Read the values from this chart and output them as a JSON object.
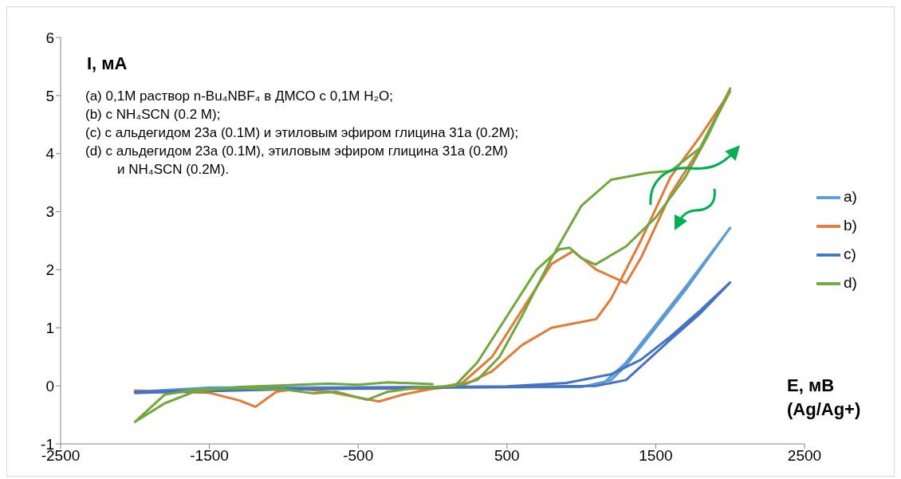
{
  "chart_data": {
    "type": "line",
    "xlabel": "E, мВ (Ag/Ag+)",
    "ylabel": "I, мА",
    "annotations": [
      "(a) 0,1M раствор n-Bu₄NBF₄ в ДМСО с 0,1M H₂O;",
      "(b) с NH₄SCN (0.2 M);",
      "(c) с альдегидом 23a (0.1M) и этиловым эфиром глицина 31a (0.2M);",
      "(d) с альдегидом 23a (0.1M), этиловым эфиром глицина 31a (0.2M)\nи NH₄SCN (0.2M)."
    ],
    "xlim": [
      -2500,
      2500
    ],
    "xticks": [
      -2500,
      -1500,
      -500,
      500,
      1500,
      2500
    ],
    "ylim": [
      -1,
      6
    ],
    "yticks": [
      -1,
      0,
      1,
      2,
      3,
      4,
      5,
      6
    ],
    "grid": false,
    "legend": "right",
    "marker": "none",
    "line_style": "solid",
    "series": [
      {
        "name": "a)",
        "color": "#5b9bd5",
        "x": [
          -2000,
          -1500,
          0,
          500,
          1000,
          1150,
          1300,
          1500,
          1700,
          2000,
          1700,
          1500,
          1300,
          1200,
          1000,
          0,
          -1000,
          -2000
        ],
        "values": [
          -0.1,
          -0.03,
          -0.02,
          -0.02,
          -0.01,
          0.05,
          0.4,
          1.05,
          1.7,
          2.72,
          1.65,
          1.0,
          0.35,
          0.1,
          -0.02,
          -0.03,
          -0.05,
          -0.12
        ]
      },
      {
        "name": "b)",
        "color": "#e07b39",
        "x": [
          -2000,
          -1500,
          -1300,
          -1190,
          -1050,
          -900,
          -700,
          -500,
          -360,
          -200,
          0,
          200,
          400,
          600,
          800,
          1000,
          1100,
          1200,
          1400,
          1600,
          1800,
          2000,
          1800,
          1600,
          1400,
          1300,
          1100,
          945,
          800,
          600,
          400,
          200,
          0,
          -500,
          -1000,
          -1500,
          -2000
        ],
        "values": [
          -0.08,
          -0.12,
          -0.25,
          -0.36,
          -0.1,
          -0.05,
          -0.1,
          -0.2,
          -0.27,
          -0.15,
          -0.05,
          0,
          0.25,
          0.7,
          1.0,
          1.1,
          1.15,
          1.5,
          2.5,
          3.6,
          4.3,
          5.07,
          4.1,
          3.3,
          2.2,
          1.77,
          2.0,
          2.32,
          2.1,
          1.3,
          0.5,
          0.05,
          -0.05,
          -0.05,
          -0.05,
          -0.08,
          -0.1
        ]
      },
      {
        "name": "c)",
        "color": "#4472c4",
        "x": [
          -2000,
          -1000,
          0,
          500,
          900,
          1200,
          1400,
          1600,
          1800,
          2000,
          1800,
          1600,
          1450,
          1300,
          1100,
          500,
          0,
          -1000,
          -2000
        ],
        "values": [
          -0.1,
          -0.05,
          -0.02,
          -0.01,
          0.05,
          0.2,
          0.45,
          0.85,
          1.3,
          1.78,
          1.25,
          0.8,
          0.45,
          0.1,
          0,
          -0.02,
          -0.03,
          -0.06,
          -0.12
        ]
      },
      {
        "name": "d)",
        "color": "#70a83c",
        "x": [
          0,
          -300,
          -500,
          -700,
          -1000,
          -1300,
          -1600,
          -1800,
          -2000,
          -1800,
          -1600,
          -1300,
          -1000,
          -800,
          -650,
          -440,
          -300,
          -100,
          150,
          300,
          500,
          700,
          850,
          920,
          1000,
          1094,
          1300,
          1500,
          1700,
          1850,
          2000,
          1800,
          1600,
          1450,
          1200,
          1000,
          800,
          600,
          450,
          300,
          150
        ],
        "values": [
          0.03,
          0.06,
          0.02,
          0.04,
          0.01,
          -0.02,
          -0.1,
          -0.3,
          -0.62,
          -0.15,
          -0.07,
          -0.04,
          -0.06,
          -0.13,
          -0.1,
          -0.24,
          -0.1,
          -0.03,
          0,
          0.4,
          1.2,
          2.0,
          2.35,
          2.38,
          2.2,
          2.09,
          2.4,
          2.9,
          3.6,
          4.3,
          5.12,
          4.1,
          3.7,
          3.67,
          3.55,
          3.1,
          2.2,
          1.2,
          0.5,
          0.1,
          0
        ]
      }
    ]
  }
}
